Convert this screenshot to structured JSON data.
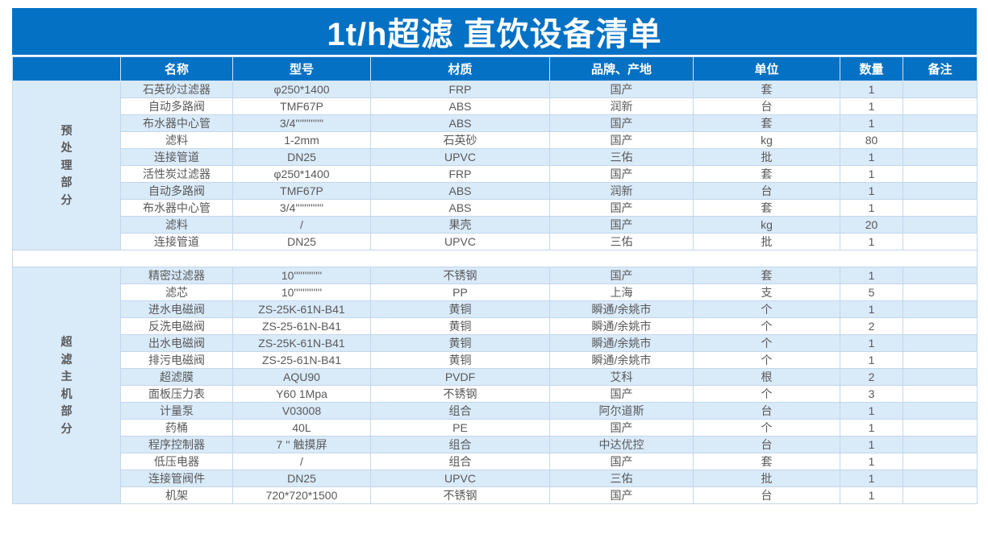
{
  "title": "1t/h超滤 直饮设备清单",
  "colors": {
    "header_blue": "#0571c4",
    "row_alt_blue": "#d9eaf9",
    "border": "#c3d7eb",
    "text": "#595959"
  },
  "table": {
    "columns": [
      "名称",
      "型号",
      "材质",
      "品牌、产地",
      "单位",
      "数量",
      "备注"
    ],
    "sections": [
      {
        "label": "预处理部分",
        "rows": [
          [
            "石英砂过滤器",
            "φ250*1400",
            "FRP",
            "国产",
            "套",
            "1",
            ""
          ],
          [
            "自动多路阀",
            "TMF67P",
            "ABS",
            "润新",
            "台",
            "1",
            ""
          ],
          [
            "布水器中心管",
            "3/4'''''''''''''",
            "ABS",
            "国产",
            "套",
            "1",
            ""
          ],
          [
            "滤料",
            "1-2mm",
            "石英砂",
            "国产",
            "kg",
            "80",
            ""
          ],
          [
            "连接管道",
            "DN25",
            "UPVC",
            "三佑",
            "批",
            "1",
            ""
          ],
          [
            "活性炭过滤器",
            "φ250*1400",
            "FRP",
            "国产",
            "套",
            "1",
            ""
          ],
          [
            "自动多路阀",
            "TMF67P",
            "ABS",
            "润新",
            "台",
            "1",
            ""
          ],
          [
            "布水器中心管",
            "3/4'''''''''''''",
            "ABS",
            "国产",
            "套",
            "1",
            ""
          ],
          [
            "滤料",
            "/",
            "果壳",
            "国产",
            "kg",
            "20",
            ""
          ],
          [
            "连接管道",
            "DN25",
            "UPVC",
            "三佑",
            "批",
            "1",
            ""
          ]
        ]
      },
      {
        "label": "超滤主机部分",
        "rows": [
          [
            "精密过滤器",
            "10'''''''''''''",
            "不锈钢",
            "国产",
            "套",
            "1",
            ""
          ],
          [
            "滤芯",
            "10'''''''''''''",
            "PP",
            "上海",
            "支",
            "5",
            ""
          ],
          [
            "进水电磁阀",
            "ZS-25K-61N-B41",
            "黄铜",
            "瞬通/余姚市",
            "个",
            "1",
            ""
          ],
          [
            "反洗电磁阀",
            "ZS-25-61N-B41",
            "黄铜",
            "瞬通/余姚市",
            "个",
            "2",
            ""
          ],
          [
            "出水电磁阀",
            "ZS-25K-61N-B41",
            "黄铜",
            "瞬通/余姚市",
            "个",
            "1",
            ""
          ],
          [
            "排污电磁阀",
            "ZS-25-61N-B41",
            "黄铜",
            "瞬通/余姚市",
            "个",
            "1",
            ""
          ],
          [
            "超滤膜",
            "AQU90",
            "PVDF",
            "艾科",
            "根",
            "2",
            ""
          ],
          [
            "面板压力表",
            "Y60 1Mpa",
            "不锈钢",
            "国产",
            "个",
            "3",
            ""
          ],
          [
            "计量泵",
            "V03008",
            "组合",
            "阿尔道斯",
            "台",
            "1",
            ""
          ],
          [
            "药桶",
            "40L",
            "PE",
            "国产",
            "个",
            "1",
            ""
          ],
          [
            "程序控制器",
            "7 '' 触摸屏",
            "组合",
            "中达优控",
            "台",
            "1",
            ""
          ],
          [
            "低压电器",
            "/",
            "组合",
            "国产",
            "套",
            "1",
            ""
          ],
          [
            "连接管阀件",
            "DN25",
            "UPVC",
            "三佑",
            "批",
            "1",
            ""
          ],
          [
            "机架",
            "720*720*1500",
            "不锈钢",
            "国产",
            "台",
            "1",
            ""
          ]
        ]
      }
    ]
  }
}
